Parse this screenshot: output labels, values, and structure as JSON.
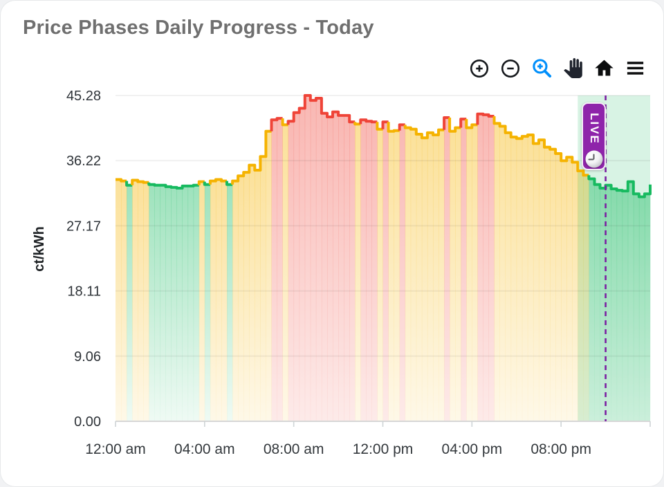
{
  "card": {
    "title": "Price Phases Daily Progress - Today"
  },
  "toolbar": {
    "items": [
      {
        "name": "zoom-in",
        "active": false
      },
      {
        "name": "zoom-out",
        "active": false
      },
      {
        "name": "selection-zoom",
        "active": true
      },
      {
        "name": "pan",
        "active": false
      },
      {
        "name": "home",
        "active": false
      },
      {
        "name": "menu",
        "active": false
      }
    ],
    "active_color": "#008ffb",
    "icon_color": "#16191d"
  },
  "chart_data": {
    "type": "area",
    "subtype": "stepline-phase-colored",
    "title": "Price Phases Daily Progress - Today",
    "xlabel": "",
    "ylabel": "ct/kWh",
    "ylim": [
      0,
      45.28
    ],
    "x_range_hours": [
      0,
      24
    ],
    "step_minutes": 15,
    "grid": "horizontal",
    "legend": "none",
    "y_ticks": [
      {
        "value": 45.28,
        "label": "45.28"
      },
      {
        "value": 36.22,
        "label": "36.22"
      },
      {
        "value": 27.17,
        "label": "27.17"
      },
      {
        "value": 18.11,
        "label": "18.11"
      },
      {
        "value": 9.06,
        "label": "9.06"
      },
      {
        "value": 0,
        "label": "0.00"
      }
    ],
    "x_ticks": [
      {
        "hour": 0,
        "label": "12:00 am"
      },
      {
        "hour": 4,
        "label": "04:00 am"
      },
      {
        "hour": 8,
        "label": "08:00 am"
      },
      {
        "hour": 12,
        "label": "12:00 pm"
      },
      {
        "hour": 16,
        "label": "04:00 pm"
      },
      {
        "hour": 20,
        "label": "08:00 pm"
      },
      {
        "hour": 24,
        "label": ""
      }
    ],
    "phase_colors": {
      "g": "#17ba60",
      "y": "#f5b301",
      "r": "#ef4438"
    },
    "series": [
      {
        "name": "price",
        "unit": "ct/kWh",
        "points": [
          [
            "00:00",
            33.6,
            "y"
          ],
          [
            "00:15",
            33.4,
            "y"
          ],
          [
            "00:30",
            32.8,
            "g"
          ],
          [
            "00:45",
            33.5,
            "y"
          ],
          [
            "01:00",
            33.3,
            "y"
          ],
          [
            "01:15",
            33.2,
            "y"
          ],
          [
            "01:30",
            32.9,
            "g"
          ],
          [
            "01:45",
            32.8,
            "g"
          ],
          [
            "02:00",
            32.8,
            "g"
          ],
          [
            "02:15",
            32.6,
            "g"
          ],
          [
            "02:30",
            32.5,
            "g"
          ],
          [
            "02:45",
            32.4,
            "g"
          ],
          [
            "03:00",
            32.7,
            "g"
          ],
          [
            "03:15",
            32.7,
            "g"
          ],
          [
            "03:30",
            32.8,
            "g"
          ],
          [
            "03:45",
            33.3,
            "y"
          ],
          [
            "04:00",
            32.9,
            "g"
          ],
          [
            "04:15",
            33.4,
            "y"
          ],
          [
            "04:30",
            33.6,
            "y"
          ],
          [
            "04:45",
            33.4,
            "y"
          ],
          [
            "05:00",
            32.9,
            "g"
          ],
          [
            "05:15",
            33.4,
            "y"
          ],
          [
            "05:30",
            34.1,
            "y"
          ],
          [
            "05:45",
            34.6,
            "y"
          ],
          [
            "06:00",
            35.6,
            "y"
          ],
          [
            "06:15",
            34.9,
            "y"
          ],
          [
            "06:30",
            36.8,
            "y"
          ],
          [
            "06:45",
            40.3,
            "y"
          ],
          [
            "07:00",
            41.9,
            "r"
          ],
          [
            "07:15",
            42.1,
            "r"
          ],
          [
            "07:30",
            41.2,
            "y"
          ],
          [
            "07:45",
            41.7,
            "r"
          ],
          [
            "08:00",
            42.9,
            "r"
          ],
          [
            "08:15",
            43.5,
            "r"
          ],
          [
            "08:30",
            45.28,
            "r"
          ],
          [
            "08:45",
            44.6,
            "r"
          ],
          [
            "09:00",
            44.9,
            "r"
          ],
          [
            "09:15",
            42.8,
            "r"
          ],
          [
            "09:30",
            42.3,
            "r"
          ],
          [
            "09:45",
            43.0,
            "r"
          ],
          [
            "10:00",
            42.5,
            "r"
          ],
          [
            "10:15",
            42.5,
            "r"
          ],
          [
            "10:30",
            41.6,
            "r"
          ],
          [
            "10:45",
            41.3,
            "y"
          ],
          [
            "11:00",
            41.9,
            "r"
          ],
          [
            "11:15",
            41.7,
            "r"
          ],
          [
            "11:30",
            41.6,
            "r"
          ],
          [
            "11:45",
            40.6,
            "y"
          ],
          [
            "12:00",
            41.6,
            "r"
          ],
          [
            "12:15",
            40.3,
            "y"
          ],
          [
            "12:30",
            40.4,
            "y"
          ],
          [
            "12:45",
            41.2,
            "r"
          ],
          [
            "13:00",
            40.8,
            "y"
          ],
          [
            "13:15",
            40.6,
            "y"
          ],
          [
            "13:30",
            39.9,
            "y"
          ],
          [
            "13:45",
            39.4,
            "y"
          ],
          [
            "14:00",
            40.1,
            "y"
          ],
          [
            "14:15",
            39.8,
            "y"
          ],
          [
            "14:30",
            40.5,
            "y"
          ],
          [
            "14:45",
            42.2,
            "r"
          ],
          [
            "15:00",
            40.3,
            "y"
          ],
          [
            "15:15",
            40.8,
            "y"
          ],
          [
            "15:30",
            42.0,
            "r"
          ],
          [
            "15:45",
            40.8,
            "y"
          ],
          [
            "16:00",
            41.2,
            "y"
          ],
          [
            "16:15",
            42.7,
            "r"
          ],
          [
            "16:30",
            42.6,
            "r"
          ],
          [
            "16:45",
            42.4,
            "r"
          ],
          [
            "17:00",
            41.4,
            "y"
          ],
          [
            "17:15",
            41.0,
            "y"
          ],
          [
            "17:30",
            40.1,
            "y"
          ],
          [
            "17:45",
            39.5,
            "y"
          ],
          [
            "18:00",
            39.3,
            "y"
          ],
          [
            "18:15",
            39.6,
            "y"
          ],
          [
            "18:30",
            39.8,
            "y"
          ],
          [
            "18:45",
            38.6,
            "y"
          ],
          [
            "19:00",
            39.1,
            "y"
          ],
          [
            "19:15",
            38.1,
            "y"
          ],
          [
            "19:30",
            37.8,
            "y"
          ],
          [
            "19:45",
            37.2,
            "y"
          ],
          [
            "20:00",
            36.2,
            "y"
          ],
          [
            "20:15",
            36.7,
            "y"
          ],
          [
            "20:30",
            36.0,
            "y"
          ],
          [
            "20:45",
            34.8,
            "y"
          ],
          [
            "21:00",
            34.2,
            "y"
          ],
          [
            "21:15",
            33.7,
            "g"
          ],
          [
            "21:30",
            32.9,
            "g"
          ],
          [
            "21:45",
            32.4,
            "g"
          ],
          [
            "22:00",
            32.8,
            "g"
          ],
          [
            "22:15",
            32.3,
            "g"
          ],
          [
            "22:30",
            32.1,
            "g"
          ],
          [
            "22:45",
            32.0,
            "g"
          ],
          [
            "23:00",
            33.3,
            "g"
          ],
          [
            "23:15",
            31.6,
            "g"
          ],
          [
            "23:30",
            31.2,
            "g"
          ],
          [
            "23:45",
            31.6,
            "g"
          ]
        ],
        "close_value": 32.9
      }
    ],
    "annotations": {
      "live_band": {
        "from_hour": 20.75,
        "to_hour": 24,
        "color": "#17ba60",
        "opacity": 0.17
      },
      "now_line": {
        "hour": 22.0,
        "color": "#7b1fa2",
        "dash": true
      },
      "live_badge": {
        "label": "LIVE",
        "background": "#8e24aa",
        "icon": "clock-icon"
      }
    }
  }
}
